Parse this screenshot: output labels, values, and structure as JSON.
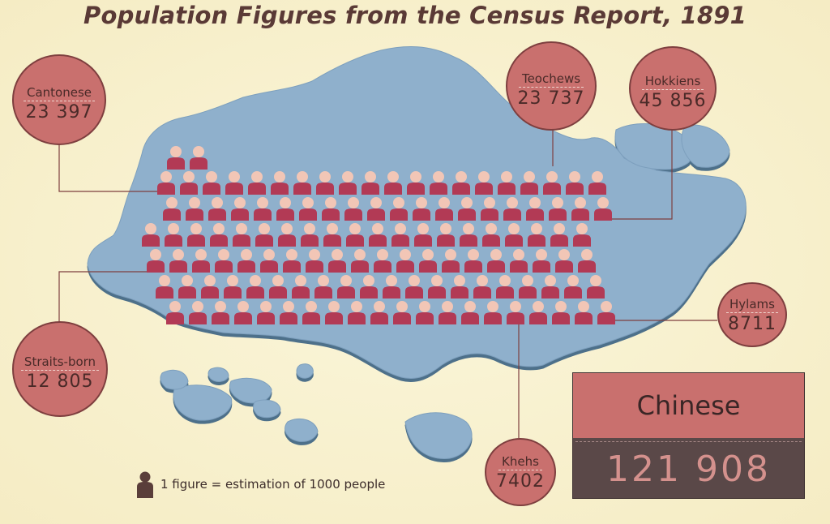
{
  "title": "Population Figures from the Census Report, 1891",
  "groups": {
    "cantonese": {
      "name": "Cantonese",
      "value": "23 397"
    },
    "teochews": {
      "name": "Teochews",
      "value": "23 737"
    },
    "hokkiens": {
      "name": "Hokkiens",
      "value": "45 856"
    },
    "straits_born": {
      "name": "Straits-born",
      "value": "12 805"
    },
    "hylams": {
      "name": "Hylams",
      "value": "8711"
    },
    "khehs": {
      "name": "Khehs",
      "value": "7402"
    }
  },
  "total": {
    "label": "Chinese",
    "value": "121 908"
  },
  "legend": {
    "text": "1 figure = estimation of 1000 people",
    "icon": "person-icon"
  },
  "colors": {
    "bubble": "#c9706e",
    "map": "#8fb0cc",
    "figure": "#b23a55",
    "background": "#f7efcd"
  }
}
